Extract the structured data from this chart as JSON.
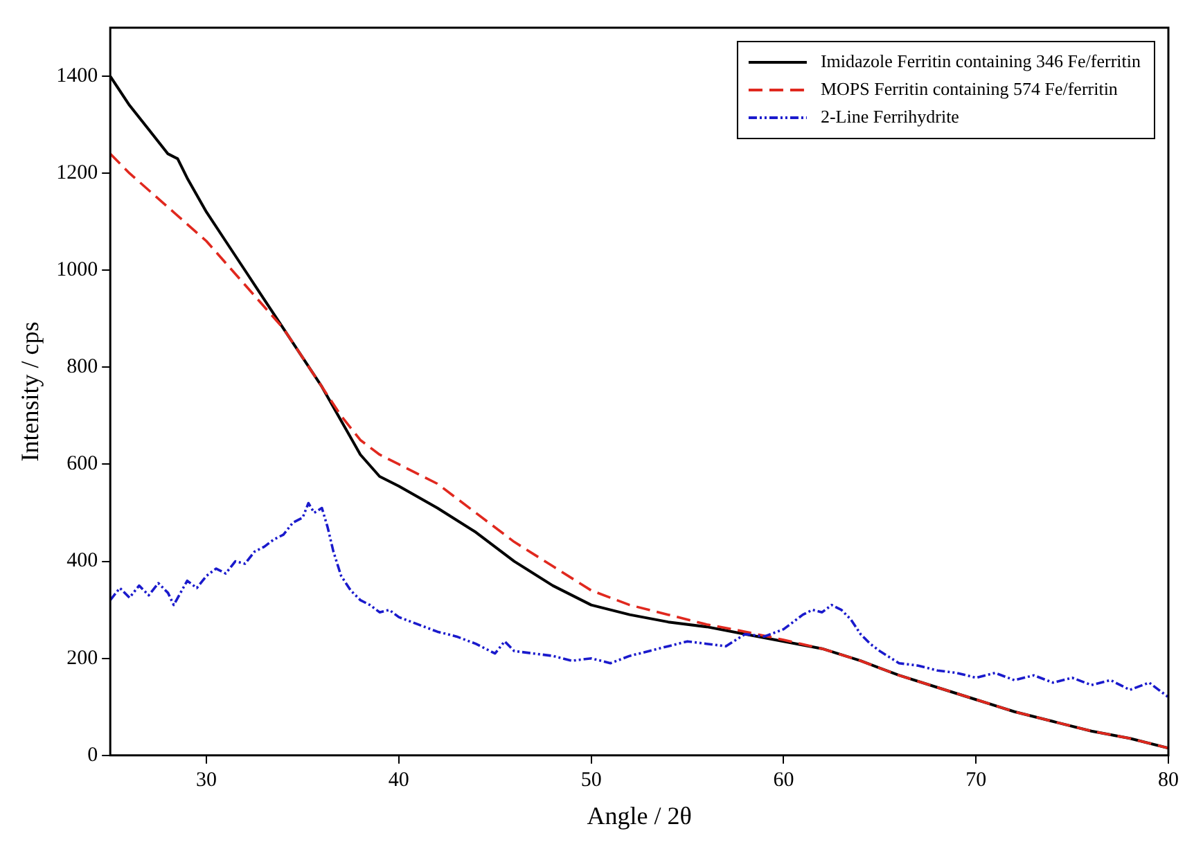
{
  "chart_data": {
    "type": "line",
    "xlabel": "Angle / 2θ",
    "ylabel": "Intensity / cps",
    "xlim": [
      25,
      80
    ],
    "xticks": [
      30,
      40,
      50,
      60,
      70,
      80
    ],
    "ylim": [
      0,
      1500
    ],
    "yticks": [
      0,
      200,
      400,
      600,
      800,
      1000,
      1200,
      1400
    ],
    "grid": false,
    "legend": "top right",
    "marker": "none",
    "series": [
      {
        "name": "Imidazole Ferritin containing 346 Fe/ferritin",
        "color": "#000000",
        "line_style": "solid",
        "x": [
          25,
          26,
          27,
          28,
          28.5,
          29,
          30,
          31,
          32,
          33,
          34,
          35,
          36,
          37,
          38,
          39,
          40,
          42,
          44,
          46,
          48,
          50,
          52,
          54,
          56,
          58,
          60,
          62,
          64,
          66,
          68,
          70,
          72,
          74,
          76,
          78,
          80
        ],
        "values": [
          1400,
          1340,
          1290,
          1240,
          1230,
          1190,
          1120,
          1060,
          1000,
          940,
          880,
          820,
          760,
          690,
          620,
          575,
          555,
          510,
          460,
          400,
          350,
          310,
          290,
          275,
          265,
          250,
          235,
          220,
          195,
          165,
          140,
          115,
          90,
          70,
          50,
          35,
          15
        ]
      },
      {
        "name": "MOPS Ferritin containing 574 Fe/ferritin",
        "color": "#e0281e",
        "line_style": "dashed",
        "x": [
          25,
          26,
          28,
          30,
          32,
          34,
          35,
          36,
          37,
          38,
          39,
          40,
          42,
          44,
          46,
          48,
          50,
          52,
          54,
          56,
          58,
          60,
          62,
          64,
          66,
          68,
          70,
          72,
          74,
          76,
          78,
          80
        ],
        "values": [
          1240,
          1200,
          1130,
          1060,
          970,
          880,
          820,
          760,
          700,
          650,
          620,
          600,
          560,
          500,
          440,
          390,
          340,
          310,
          290,
          270,
          255,
          238,
          220,
          195,
          165,
          140,
          115,
          90,
          70,
          50,
          35,
          15
        ]
      },
      {
        "name": "2-Line Ferrihydrite",
        "color": "#1a1acc",
        "line_style": "dotted",
        "x": [
          25,
          25.5,
          26,
          26.5,
          27,
          27.5,
          28,
          28.3,
          29,
          29.5,
          30,
          30.5,
          31,
          31.5,
          32,
          32.5,
          33,
          33.5,
          34,
          34.5,
          35,
          35.3,
          35.6,
          36,
          36.3,
          36.6,
          37,
          37.5,
          38,
          38.5,
          39,
          39.5,
          40,
          41,
          42,
          43,
          44,
          45,
          45.5,
          46,
          47,
          48,
          49,
          50,
          51,
          52,
          53,
          54,
          55,
          56,
          57,
          58,
          59,
          60,
          60.5,
          61,
          61.5,
          62,
          62.5,
          63,
          63.5,
          64,
          64.5,
          65,
          66,
          67,
          68,
          69,
          70,
          71,
          72,
          73,
          74,
          75,
          76,
          77,
          78,
          79,
          80
        ],
        "values": [
          320,
          345,
          325,
          350,
          330,
          355,
          335,
          310,
          360,
          345,
          370,
          385,
          375,
          400,
          395,
          420,
          430,
          445,
          455,
          480,
          490,
          520,
          500,
          510,
          470,
          420,
          370,
          340,
          320,
          310,
          295,
          300,
          285,
          270,
          255,
          245,
          230,
          210,
          235,
          215,
          210,
          205,
          195,
          200,
          190,
          205,
          215,
          225,
          235,
          230,
          225,
          250,
          245,
          260,
          275,
          290,
          300,
          295,
          310,
          300,
          280,
          250,
          230,
          215,
          190,
          185,
          175,
          170,
          160,
          170,
          155,
          165,
          150,
          160,
          145,
          155,
          135,
          150,
          120
        ]
      }
    ]
  }
}
